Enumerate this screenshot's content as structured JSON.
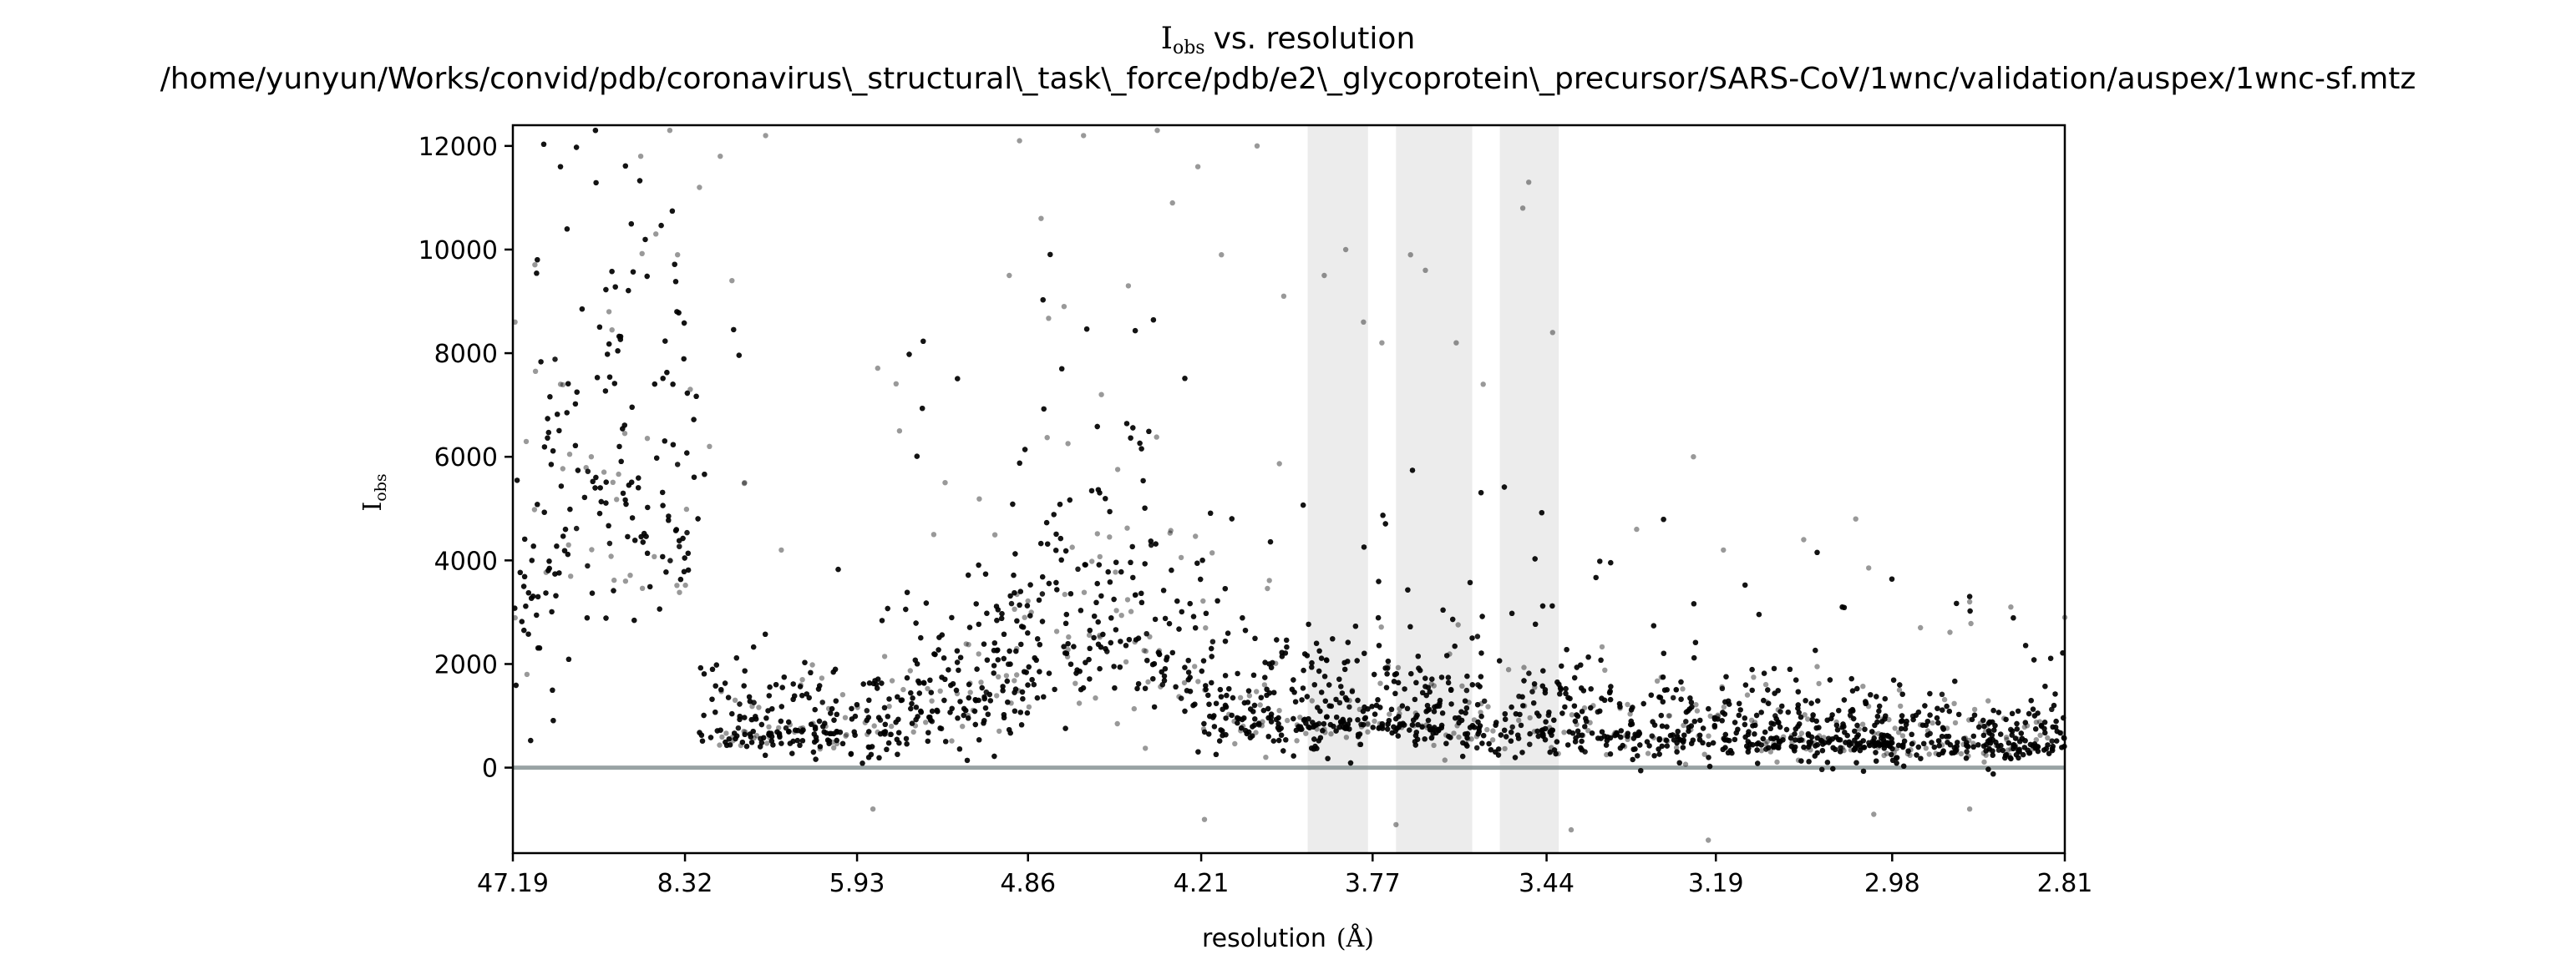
{
  "chart_data": {
    "type": "scatter",
    "title_main": "vs. resolution",
    "title_symbol": {
      "base": "I",
      "subscript": "obs"
    },
    "subtitle": "/home/yunyun/Works/convid/pdb/coronavirus\\_structural\\_task\\_force/pdb/e2\\_glycoprotein\\_precursor/SARS-CoV/1wnc/validation/auspex/1wnc-sf.mtz",
    "xlabel": "resolution",
    "xlabel_unit": "(Å)",
    "ylabel": {
      "base": "I",
      "subscript": "obs"
    },
    "x_scale": "reciprocal-squared",
    "x_tick_labels": [
      "47.19",
      "8.32",
      "5.93",
      "4.86",
      "4.21",
      "3.77",
      "3.44",
      "3.19",
      "2.98",
      "2.81"
    ],
    "xlim_resolution": [
      47.19,
      2.81
    ],
    "y_ticks": [
      0,
      2000,
      4000,
      6000,
      8000,
      10000,
      12000
    ],
    "ylim": [
      -1650,
      12400
    ],
    "grid": false,
    "zero_line": {
      "y": 0,
      "color": "#7f8c8d"
    },
    "ice_ring_bands_resolution": [
      [
        3.92,
        3.78
      ],
      [
        3.72,
        3.57
      ],
      [
        3.52,
        3.42
      ]
    ],
    "band_color": "#ececec",
    "point_color": "#000000",
    "point_opacity": 0.4,
    "points": [
      {
        "resolution": 40.0,
        "iobs": 8600
      },
      {
        "resolution": 25.0,
        "iobs": 1800
      },
      {
        "resolution": 15.2,
        "iobs": 7400
      },
      {
        "resolution": 12.1,
        "iobs": 6000
      },
      {
        "resolution": 11.0,
        "iobs": 8800
      },
      {
        "resolution": 10.2,
        "iobs": 3600
      },
      {
        "resolution": 9.6,
        "iobs": 11800
      },
      {
        "resolution": 9.1,
        "iobs": 10300
      },
      {
        "resolution": 8.7,
        "iobs": 12300
      },
      {
        "resolution": 8.5,
        "iobs": 9900
      },
      {
        "resolution": 8.2,
        "iobs": 7300
      },
      {
        "resolution": 8.0,
        "iobs": 11200
      },
      {
        "resolution": 7.8,
        "iobs": 6200
      },
      {
        "resolution": 7.6,
        "iobs": 11800
      },
      {
        "resolution": 7.4,
        "iobs": 9400
      },
      {
        "resolution": 7.2,
        "iobs": 5500
      },
      {
        "resolution": 6.9,
        "iobs": 12200
      },
      {
        "resolution": 6.7,
        "iobs": 4200
      },
      {
        "resolution": 5.6,
        "iobs": 6500
      },
      {
        "resolution": 5.3,
        "iobs": 5500
      },
      {
        "resolution": 4.95,
        "iobs": 9500
      },
      {
        "resolution": 4.9,
        "iobs": 12100
      },
      {
        "resolution": 4.8,
        "iobs": 10600
      },
      {
        "resolution": 4.7,
        "iobs": 8900
      },
      {
        "resolution": 4.62,
        "iobs": 12200
      },
      {
        "resolution": 4.55,
        "iobs": 7200
      },
      {
        "resolution": 4.45,
        "iobs": 9300
      },
      {
        "resolution": 4.35,
        "iobs": 12300
      },
      {
        "resolution": 4.3,
        "iobs": 10900
      },
      {
        "resolution": 4.22,
        "iobs": 11600
      },
      {
        "resolution": 4.15,
        "iobs": 9900
      },
      {
        "resolution": 4.05,
        "iobs": 12000
      },
      {
        "resolution": 3.98,
        "iobs": 9100
      },
      {
        "resolution": 3.88,
        "iobs": 9500
      },
      {
        "resolution": 3.83,
        "iobs": 10000
      },
      {
        "resolution": 3.79,
        "iobs": 8600
      },
      {
        "resolution": 3.75,
        "iobs": 8200
      },
      {
        "resolution": 3.69,
        "iobs": 9900
      },
      {
        "resolution": 3.66,
        "iobs": 9600
      },
      {
        "resolution": 3.6,
        "iobs": 8200
      },
      {
        "resolution": 3.55,
        "iobs": 7400
      },
      {
        "resolution": 3.48,
        "iobs": 10800
      },
      {
        "resolution": 3.47,
        "iobs": 11300
      },
      {
        "resolution": 3.43,
        "iobs": 8400
      },
      {
        "resolution": 3.3,
        "iobs": 4600
      },
      {
        "resolution": 3.22,
        "iobs": 6000
      },
      {
        "resolution": 3.18,
        "iobs": 4200
      },
      {
        "resolution": 3.08,
        "iobs": 4400
      },
      {
        "resolution": 3.02,
        "iobs": 4800
      },
      {
        "resolution": 2.95,
        "iobs": 2700
      },
      {
        "resolution": 2.9,
        "iobs": 3200
      },
      {
        "resolution": 2.86,
        "iobs": 3100
      },
      {
        "resolution": 2.81,
        "iobs": 2900
      },
      {
        "resolution": 3.4,
        "iobs": -1200
      },
      {
        "resolution": 3.72,
        "iobs": -1100
      },
      {
        "resolution": 3.2,
        "iobs": -1400
      },
      {
        "resolution": 3.0,
        "iobs": -900
      },
      {
        "resolution": 2.9,
        "iobs": -800
      },
      {
        "resolution": 4.2,
        "iobs": -1000
      },
      {
        "resolution": 5.8,
        "iobs": -800
      }
    ]
  }
}
